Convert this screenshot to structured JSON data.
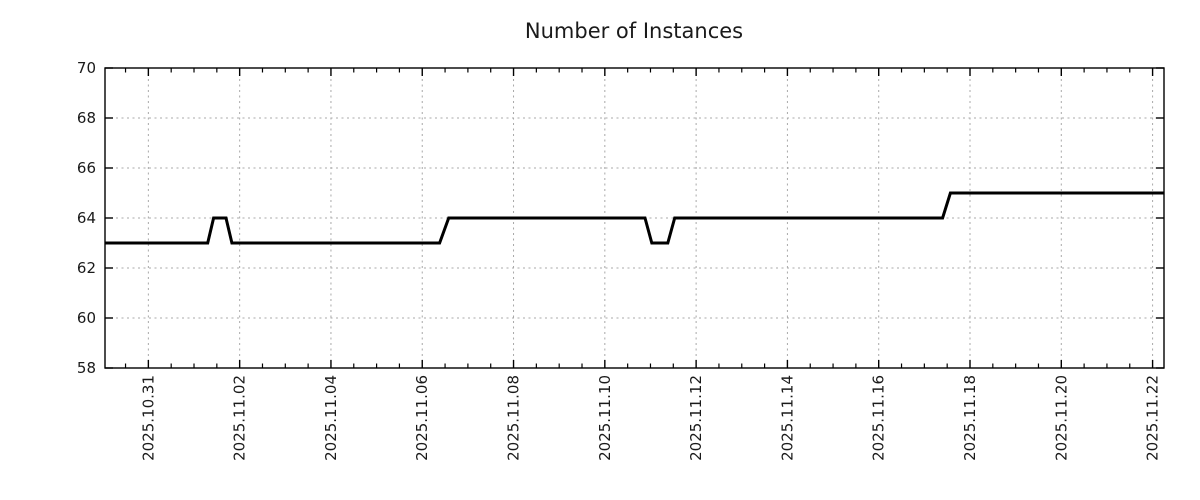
{
  "chart_data": {
    "type": "line",
    "title": "Number of Instances",
    "x_axis": {
      "label": "",
      "start_date": "2025.10.30",
      "unit": "days since 2025.10.30 00:00",
      "domain_days": [
        0.05,
        23.25
      ],
      "major_tick_days": [
        1,
        3,
        5,
        7,
        9,
        11,
        13,
        15,
        17,
        19,
        21,
        23
      ],
      "tick_labels": [
        "2025.10.31",
        "2025.11.02",
        "2025.11.04",
        "2025.11.06",
        "2025.11.08",
        "2025.11.10",
        "2025.11.12",
        "2025.11.14",
        "2025.11.16",
        "2025.11.18",
        "2025.11.20",
        "2025.11.22"
      ],
      "minor_tick_step_days": 0.5
    },
    "y_axis": {
      "label": "",
      "range": [
        58,
        70
      ],
      "ticks": [
        58,
        60,
        62,
        64,
        66,
        68,
        70
      ],
      "grid_ticks": [
        60,
        62,
        64,
        66,
        68
      ]
    },
    "series": [
      {
        "name": "instances",
        "points_day_value": [
          [
            0.05,
            63
          ],
          [
            2.3,
            63
          ],
          [
            2.43,
            64
          ],
          [
            2.7,
            64
          ],
          [
            2.83,
            63
          ],
          [
            7.38,
            63
          ],
          [
            7.58,
            64
          ],
          [
            11.88,
            64
          ],
          [
            12.03,
            63
          ],
          [
            12.38,
            63
          ],
          [
            12.53,
            64
          ],
          [
            18.4,
            64
          ],
          [
            18.57,
            65
          ],
          [
            23.25,
            65
          ]
        ]
      }
    ],
    "grid": "dotted",
    "legend": "none",
    "colors": {
      "line": "#000000",
      "grid": "#a8a8a8",
      "axis": "#000000",
      "text": "#1a1a1a",
      "background": "#ffffff"
    }
  }
}
